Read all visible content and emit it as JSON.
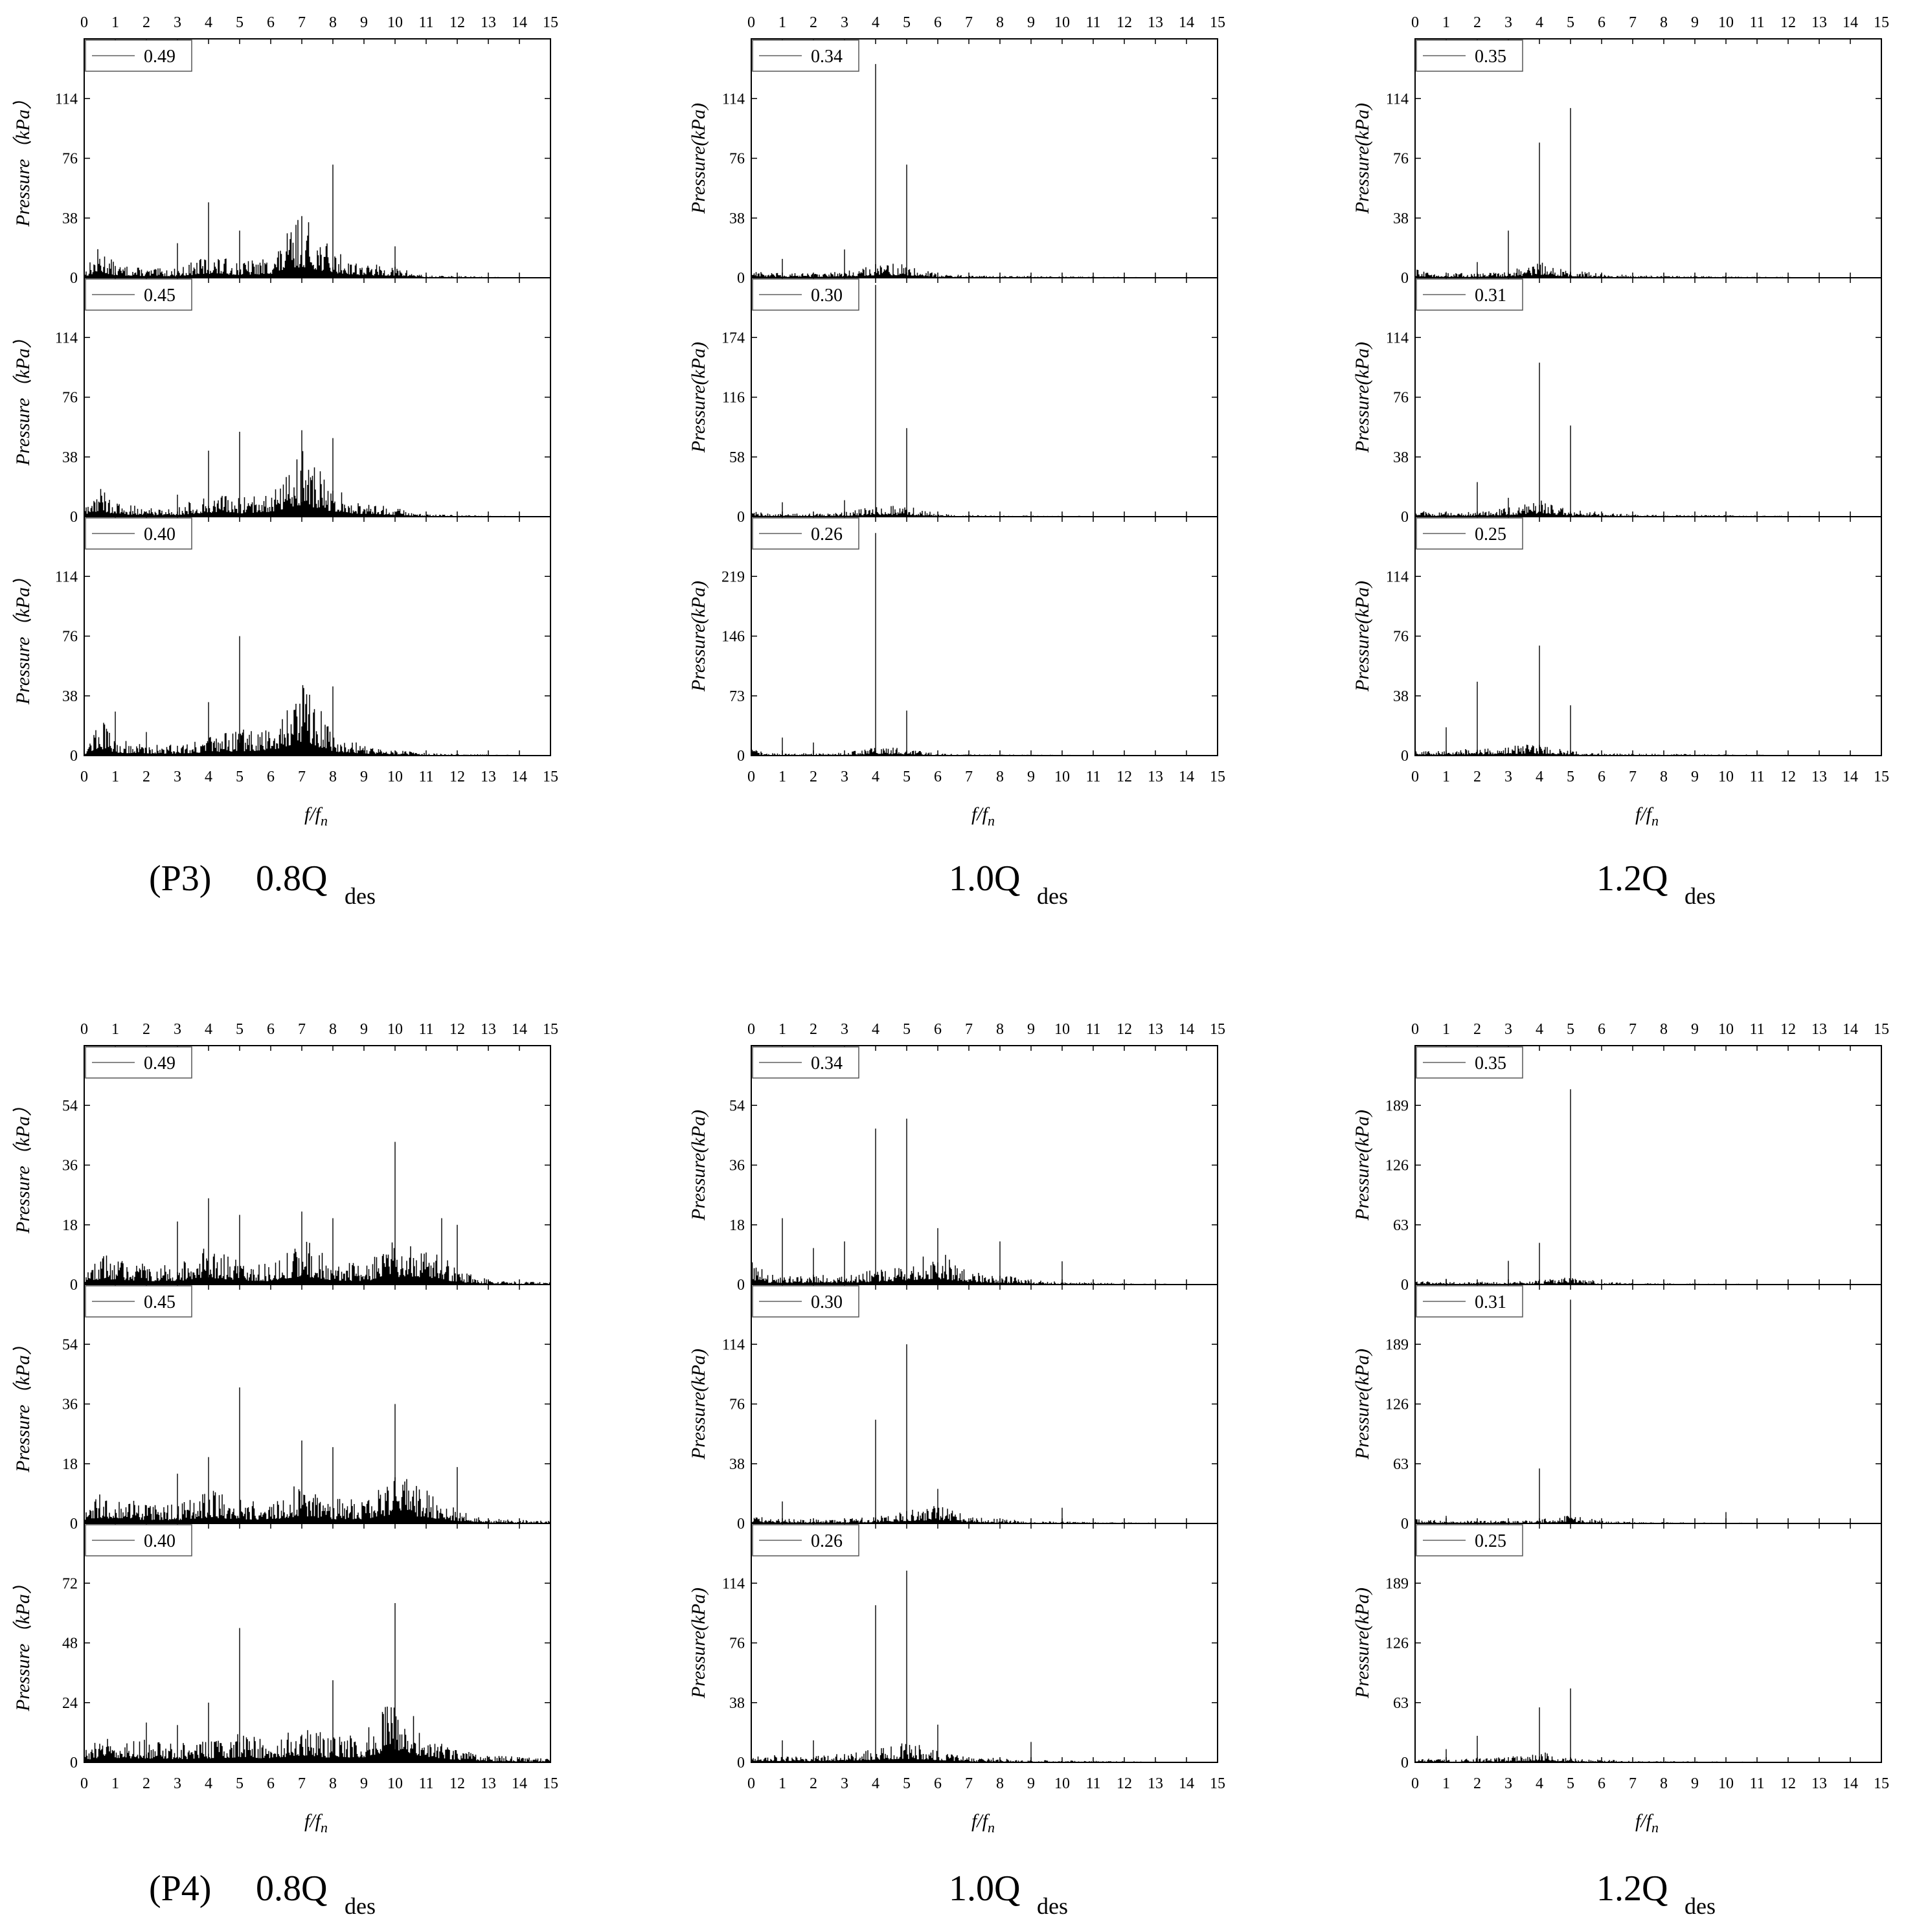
{
  "figure": {
    "x_ticks": [
      "0",
      "1",
      "2",
      "3",
      "4",
      "5",
      "6",
      "7",
      "8",
      "9",
      "10",
      "11",
      "12",
      "13",
      "14",
      "15"
    ],
    "x_range": [
      0,
      15
    ],
    "x_axis_title": {
      "main": "f/f",
      "sub": "n"
    },
    "y_axis_title_with_spaces": "Pressure（kPa）",
    "y_axis_title_compact": "Pressure(kPa)",
    "captions": {
      "p3_prefix": "(P3)",
      "p4_prefix": "(P4)",
      "q08": "0.8Q",
      "q10": "1.0Q",
      "q12": "1.2Q",
      "sub": "des"
    },
    "series_color": "#000000",
    "legend_line_color": "#888888",
    "panel_border_color": "#000000"
  },
  "chart_data": [
    {
      "type": "line",
      "group": "P3",
      "flow": "0.8Qdes",
      "legend": "0.49",
      "ylim": [
        0,
        152
      ],
      "yticks": [
        "0",
        "38",
        "76",
        "114"
      ],
      "peaks": [
        [
          4,
          48
        ],
        [
          5,
          30
        ],
        [
          3,
          22
        ],
        [
          8,
          72
        ],
        [
          10,
          20
        ]
      ],
      "baseline": [
        [
          0,
          3
        ],
        [
          0.5,
          14
        ],
        [
          1,
          6
        ],
        [
          2,
          4
        ],
        [
          3,
          4
        ],
        [
          4,
          10
        ],
        [
          5,
          7
        ],
        [
          6,
          9
        ],
        [
          7,
          28
        ],
        [
          8,
          12
        ],
        [
          9,
          6
        ],
        [
          10,
          5
        ],
        [
          11,
          1
        ],
        [
          15,
          0
        ]
      ]
    },
    {
      "type": "line",
      "group": "P3",
      "flow": "0.8Qdes",
      "legend": "0.45",
      "ylim": [
        0,
        152
      ],
      "yticks": [
        "0",
        "38",
        "76",
        "114"
      ],
      "peaks": [
        [
          4,
          42
        ],
        [
          5,
          54
        ],
        [
          7,
          55
        ],
        [
          8,
          50
        ],
        [
          3,
          14
        ]
      ],
      "baseline": [
        [
          0,
          3
        ],
        [
          0.5,
          15
        ],
        [
          1,
          6
        ],
        [
          2,
          4
        ],
        [
          3,
          4
        ],
        [
          4,
          10
        ],
        [
          5,
          8
        ],
        [
          6,
          12
        ],
        [
          7,
          30
        ],
        [
          8,
          12
        ],
        [
          9,
          6
        ],
        [
          10,
          4
        ],
        [
          11,
          1
        ],
        [
          15,
          0
        ]
      ]
    },
    {
      "type": "line",
      "group": "P3",
      "flow": "0.8Qdes",
      "legend": "0.40",
      "ylim": [
        0,
        152
      ],
      "yticks": [
        "0",
        "38",
        "76",
        "114"
      ],
      "peaks": [
        [
          5,
          76
        ],
        [
          8,
          44
        ],
        [
          4,
          34
        ],
        [
          1,
          28
        ],
        [
          2,
          15
        ]
      ],
      "baseline": [
        [
          0,
          3
        ],
        [
          0.5,
          18
        ],
        [
          1,
          7
        ],
        [
          2,
          5
        ],
        [
          3,
          5
        ],
        [
          4,
          8
        ],
        [
          5,
          11
        ],
        [
          6,
          12
        ],
        [
          7,
          35
        ],
        [
          8,
          10
        ],
        [
          9,
          5
        ],
        [
          10,
          3
        ],
        [
          11,
          1
        ],
        [
          15,
          0
        ]
      ]
    },
    {
      "type": "line",
      "group": "P3",
      "flow": "1.0Qdes",
      "legend": "0.34",
      "ylim": [
        0,
        152
      ],
      "yticks": [
        "0",
        "38",
        "76",
        "114"
      ],
      "peaks": [
        [
          4,
          136
        ],
        [
          5,
          72
        ],
        [
          3,
          18
        ],
        [
          1,
          12
        ]
      ],
      "baseline": [
        [
          0,
          5
        ],
        [
          0.5,
          2
        ],
        [
          2,
          2
        ],
        [
          3,
          3
        ],
        [
          4,
          6
        ],
        [
          5,
          6
        ],
        [
          6,
          2
        ],
        [
          7,
          1
        ],
        [
          15,
          0
        ]
      ]
    },
    {
      "type": "line",
      "group": "P3",
      "flow": "1.0Qdes",
      "legend": "0.30",
      "ylim": [
        0,
        232
      ],
      "yticks": [
        "0",
        "58",
        "116",
        "174"
      ],
      "peaks": [
        [
          4,
          225
        ],
        [
          5,
          86
        ],
        [
          3,
          16
        ],
        [
          1,
          14
        ]
      ],
      "baseline": [
        [
          0,
          5
        ],
        [
          0.5,
          2
        ],
        [
          2,
          2
        ],
        [
          3,
          3
        ],
        [
          4,
          7
        ],
        [
          5,
          7
        ],
        [
          6,
          2
        ],
        [
          7,
          1
        ],
        [
          15,
          0
        ]
      ]
    },
    {
      "type": "line",
      "group": "P3",
      "flow": "1.0Qdes",
      "legend": "0.26",
      "ylim": [
        0,
        292
      ],
      "yticks": [
        "0",
        "73",
        "146",
        "219"
      ],
      "peaks": [
        [
          4,
          272
        ],
        [
          5,
          55
        ],
        [
          1,
          22
        ],
        [
          2,
          16
        ]
      ],
      "baseline": [
        [
          0,
          6
        ],
        [
          0.5,
          2
        ],
        [
          2,
          2
        ],
        [
          3,
          3
        ],
        [
          4,
          7
        ],
        [
          5,
          6
        ],
        [
          6,
          2
        ],
        [
          7,
          1
        ],
        [
          15,
          0
        ]
      ]
    },
    {
      "type": "line",
      "group": "P3",
      "flow": "1.2Qdes",
      "legend": "0.35",
      "ylim": [
        0,
        152
      ],
      "yticks": [
        "0",
        "38",
        "76",
        "114"
      ],
      "peaks": [
        [
          5,
          108
        ],
        [
          4,
          86
        ],
        [
          3,
          30
        ],
        [
          2,
          10
        ]
      ],
      "baseline": [
        [
          0,
          4
        ],
        [
          0.5,
          2
        ],
        [
          2,
          2
        ],
        [
          3,
          3
        ],
        [
          4,
          7
        ],
        [
          5,
          3
        ],
        [
          6,
          2
        ],
        [
          7,
          1
        ],
        [
          15,
          0
        ]
      ]
    },
    {
      "type": "line",
      "group": "P3",
      "flow": "1.2Qdes",
      "legend": "0.31",
      "ylim": [
        0,
        152
      ],
      "yticks": [
        "0",
        "38",
        "76",
        "114"
      ],
      "peaks": [
        [
          4,
          98
        ],
        [
          5,
          58
        ],
        [
          2,
          22
        ],
        [
          3,
          12
        ]
      ],
      "baseline": [
        [
          0,
          4
        ],
        [
          0.5,
          2
        ],
        [
          2,
          2
        ],
        [
          3,
          4
        ],
        [
          4,
          8
        ],
        [
          5,
          3
        ],
        [
          6,
          2
        ],
        [
          7,
          1
        ],
        [
          15,
          0
        ]
      ]
    },
    {
      "type": "line",
      "group": "P3",
      "flow": "1.2Qdes",
      "legend": "0.25",
      "ylim": [
        0,
        152
      ],
      "yticks": [
        "0",
        "38",
        "76",
        "114"
      ],
      "peaks": [
        [
          4,
          70
        ],
        [
          2,
          47
        ],
        [
          5,
          32
        ],
        [
          1,
          18
        ]
      ],
      "baseline": [
        [
          0,
          3
        ],
        [
          0.5,
          2
        ],
        [
          2,
          3
        ],
        [
          3,
          4
        ],
        [
          4,
          5
        ],
        [
          5,
          2
        ],
        [
          6,
          1
        ],
        [
          15,
          0
        ]
      ]
    },
    {
      "type": "line",
      "group": "P4",
      "flow": "0.8Qdes",
      "legend": "0.49",
      "ylim": [
        0,
        72
      ],
      "yticks": [
        "0",
        "18",
        "36",
        "54"
      ],
      "peaks": [
        [
          10,
          43
        ],
        [
          4,
          26
        ],
        [
          7,
          22
        ],
        [
          5,
          21
        ],
        [
          8,
          20
        ],
        [
          3,
          19
        ],
        [
          12,
          18
        ],
        [
          11.5,
          20
        ]
      ],
      "baseline": [
        [
          0,
          3
        ],
        [
          0.5,
          6
        ],
        [
          1,
          6
        ],
        [
          2,
          4
        ],
        [
          3,
          4
        ],
        [
          4,
          8
        ],
        [
          5,
          5
        ],
        [
          6,
          4
        ],
        [
          7,
          10
        ],
        [
          8,
          5
        ],
        [
          9,
          4
        ],
        [
          10,
          9
        ],
        [
          11,
          9
        ],
        [
          12,
          3
        ],
        [
          13,
          1
        ],
        [
          15,
          0.5
        ]
      ]
    },
    {
      "type": "line",
      "group": "P4",
      "flow": "0.8Qdes",
      "legend": "0.45",
      "ylim": [
        0,
        72
      ],
      "yticks": [
        "0",
        "18",
        "36",
        "54"
      ],
      "peaks": [
        [
          5,
          41
        ],
        [
          10,
          36
        ],
        [
          7,
          25
        ],
        [
          8,
          23
        ],
        [
          4,
          20
        ],
        [
          12,
          17
        ],
        [
          3,
          15
        ]
      ],
      "baseline": [
        [
          0,
          3
        ],
        [
          0.5,
          6
        ],
        [
          1,
          6
        ],
        [
          2,
          4
        ],
        [
          3,
          4
        ],
        [
          4,
          7
        ],
        [
          5,
          5
        ],
        [
          6,
          4
        ],
        [
          7,
          9
        ],
        [
          8,
          5
        ],
        [
          9,
          5
        ],
        [
          10,
          11
        ],
        [
          11,
          7
        ],
        [
          12,
          3
        ],
        [
          13,
          1
        ],
        [
          15,
          0.5
        ]
      ]
    },
    {
      "type": "line",
      "group": "P4",
      "flow": "0.8Qdes",
      "legend": "0.40",
      "ylim": [
        0,
        96
      ],
      "yticks": [
        "0",
        "24",
        "48",
        "72"
      ],
      "peaks": [
        [
          10,
          64
        ],
        [
          5,
          54
        ],
        [
          8,
          33
        ],
        [
          4,
          24
        ],
        [
          2,
          16
        ],
        [
          3,
          15
        ]
      ],
      "baseline": [
        [
          0,
          3
        ],
        [
          0.5,
          7
        ],
        [
          1,
          7
        ],
        [
          2,
          6
        ],
        [
          3,
          5
        ],
        [
          4,
          6
        ],
        [
          5,
          8
        ],
        [
          6,
          6
        ],
        [
          7,
          11
        ],
        [
          8,
          7
        ],
        [
          9,
          8
        ],
        [
          10,
          20
        ],
        [
          11,
          8
        ],
        [
          12,
          4
        ],
        [
          13,
          2
        ],
        [
          15,
          1
        ]
      ]
    },
    {
      "type": "line",
      "group": "P4",
      "flow": "1.0Qdes",
      "legend": "0.34",
      "ylim": [
        0,
        72
      ],
      "yticks": [
        "0",
        "18",
        "36",
        "54"
      ],
      "peaks": [
        [
          5,
          50
        ],
        [
          4,
          47
        ],
        [
          1,
          20
        ],
        [
          6,
          17
        ],
        [
          3,
          13
        ],
        [
          8,
          13
        ],
        [
          2,
          11
        ],
        [
          10,
          7
        ]
      ],
      "baseline": [
        [
          0,
          6
        ],
        [
          0.5,
          2
        ],
        [
          1,
          2
        ],
        [
          2,
          2
        ],
        [
          3,
          2
        ],
        [
          4,
          3
        ],
        [
          5,
          5
        ],
        [
          6,
          7
        ],
        [
          7,
          3
        ],
        [
          8,
          2
        ],
        [
          9,
          1
        ],
        [
          10,
          0.5
        ],
        [
          15,
          0
        ]
      ]
    },
    {
      "type": "line",
      "group": "P4",
      "flow": "1.0Qdes",
      "legend": "0.30",
      "ylim": [
        0,
        152
      ],
      "yticks": [
        "0",
        "38",
        "76",
        "114"
      ],
      "peaks": [
        [
          5,
          114
        ],
        [
          4,
          66
        ],
        [
          6,
          22
        ],
        [
          1,
          14
        ],
        [
          10,
          10
        ]
      ],
      "baseline": [
        [
          0,
          3
        ],
        [
          1,
          2
        ],
        [
          2,
          2
        ],
        [
          3,
          2
        ],
        [
          4,
          3
        ],
        [
          5,
          6
        ],
        [
          6,
          8
        ],
        [
          7,
          3
        ],
        [
          8,
          2
        ],
        [
          9,
          1
        ],
        [
          15,
          0
        ]
      ]
    },
    {
      "type": "line",
      "group": "P4",
      "flow": "1.0Qdes",
      "legend": "0.26",
      "ylim": [
        0,
        152
      ],
      "yticks": [
        "0",
        "38",
        "76",
        "114"
      ],
      "peaks": [
        [
          5,
          122
        ],
        [
          4,
          100
        ],
        [
          6,
          24
        ],
        [
          1,
          14
        ],
        [
          2,
          14
        ],
        [
          9,
          13
        ]
      ],
      "baseline": [
        [
          0,
          4
        ],
        [
          1,
          3
        ],
        [
          2,
          3
        ],
        [
          3,
          4
        ],
        [
          4,
          6
        ],
        [
          5,
          9
        ],
        [
          6,
          5
        ],
        [
          7,
          2
        ],
        [
          8,
          2
        ],
        [
          9,
          1
        ],
        [
          15,
          0
        ]
      ]
    },
    {
      "type": "line",
      "group": "P4",
      "flow": "1.2Qdes",
      "legend": "0.35",
      "ylim": [
        0,
        252
      ],
      "yticks": [
        "0",
        "63",
        "126",
        "189"
      ],
      "peaks": [
        [
          5,
          206
        ],
        [
          4,
          44
        ],
        [
          3,
          25
        ],
        [
          1,
          6
        ]
      ],
      "baseline": [
        [
          0,
          3
        ],
        [
          1,
          2
        ],
        [
          2,
          2
        ],
        [
          3,
          2
        ],
        [
          4,
          3
        ],
        [
          5,
          6
        ],
        [
          6,
          2
        ],
        [
          7,
          1
        ],
        [
          15,
          0
        ]
      ]
    },
    {
      "type": "line",
      "group": "P4",
      "flow": "1.2Qdes",
      "legend": "0.31",
      "ylim": [
        0,
        252
      ],
      "yticks": [
        "0",
        "63",
        "126",
        "189"
      ],
      "peaks": [
        [
          5,
          236
        ],
        [
          4,
          58
        ],
        [
          10,
          12
        ],
        [
          1,
          8
        ]
      ],
      "baseline": [
        [
          0,
          3
        ],
        [
          1,
          2
        ],
        [
          2,
          2
        ],
        [
          3,
          2
        ],
        [
          4,
          3
        ],
        [
          5,
          6
        ],
        [
          6,
          2
        ],
        [
          7,
          1
        ],
        [
          15,
          0
        ]
      ]
    },
    {
      "type": "line",
      "group": "P4",
      "flow": "1.2Qdes",
      "legend": "0.25",
      "ylim": [
        0,
        252
      ],
      "yticks": [
        "0",
        "63",
        "126",
        "189"
      ],
      "peaks": [
        [
          5,
          78
        ],
        [
          4,
          58
        ],
        [
          2,
          28
        ],
        [
          1,
          14
        ]
      ],
      "baseline": [
        [
          0,
          3
        ],
        [
          1,
          2
        ],
        [
          2,
          3
        ],
        [
          3,
          4
        ],
        [
          4,
          8
        ],
        [
          5,
          3
        ],
        [
          6,
          2
        ],
        [
          7,
          1
        ],
        [
          15,
          0
        ]
      ]
    }
  ]
}
